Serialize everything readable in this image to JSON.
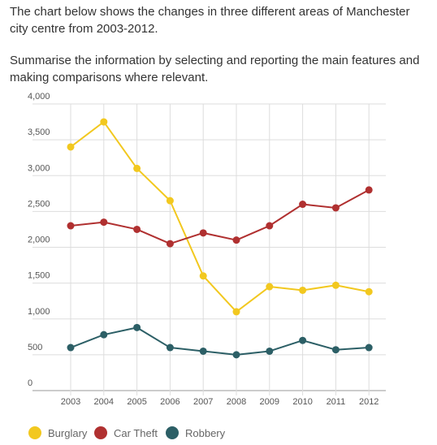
{
  "intro": {
    "line1": "The chart below shows the changes in three different areas of Manchester city centre from 2003-2012.",
    "line2": "Summarise the information by selecting and reporting the main features and making comparisons where relevant."
  },
  "chart_data": {
    "type": "line",
    "title": "",
    "xlabel": "",
    "ylabel": "",
    "x": [
      "2003",
      "2004",
      "2005",
      "2006",
      "2007",
      "2008",
      "2009",
      "2010",
      "2011",
      "2012"
    ],
    "ylim": [
      0,
      4000
    ],
    "yticks": [
      "0",
      "500",
      "1,000",
      "1,500",
      "2,000",
      "2,500",
      "3,000",
      "3,500",
      "4,000"
    ],
    "grid": true,
    "legend_position": "bottom-left",
    "series": [
      {
        "name": "Burglary",
        "color": "#f2c81f",
        "values": [
          3400,
          3750,
          3100,
          2650,
          1600,
          1100,
          1450,
          1400,
          1470,
          1380
        ]
      },
      {
        "name": "Car Theft",
        "color": "#b03030",
        "values": [
          2300,
          2350,
          2250,
          2050,
          2200,
          2100,
          2300,
          2600,
          2550,
          2800
        ]
      },
      {
        "name": "Robbery",
        "color": "#2c5f66",
        "values": [
          600,
          780,
          880,
          600,
          550,
          500,
          550,
          700,
          570,
          600
        ]
      }
    ]
  }
}
